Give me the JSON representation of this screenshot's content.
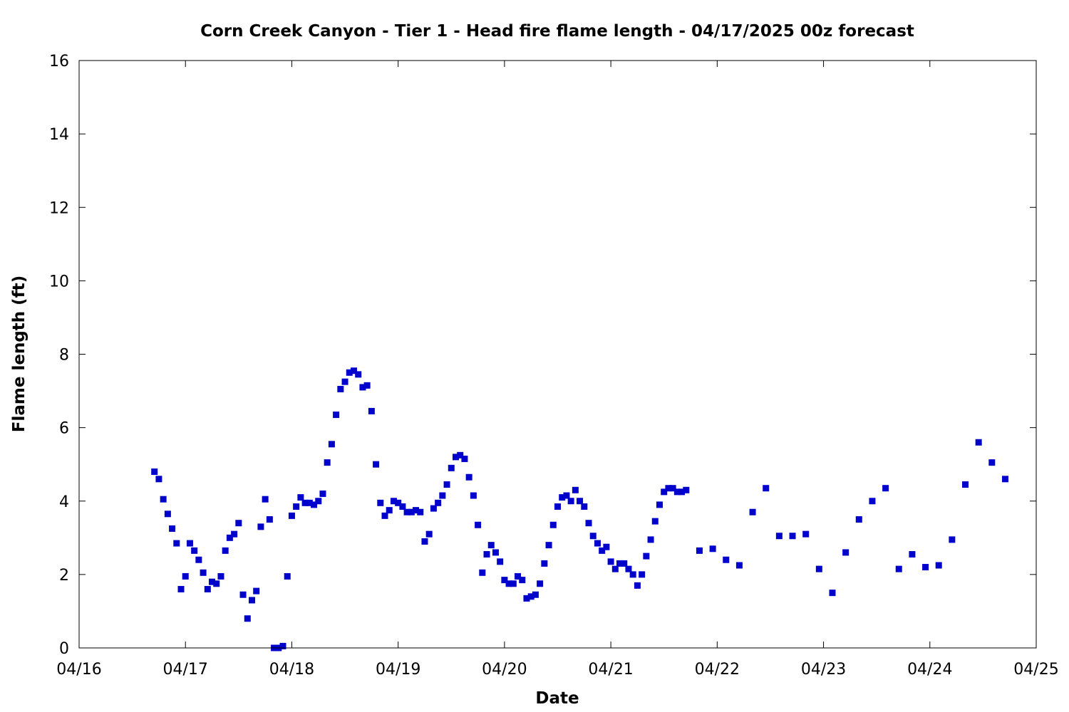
{
  "chart_data": {
    "type": "scatter",
    "title": "Corn Creek Canyon - Tier 1 - Head fire flame length - 04/17/2025 00z forecast",
    "xlabel": "Date",
    "ylabel": "Flame length (ft)",
    "xlim": [
      "2025-04-16T00:00",
      "2025-04-25T00:00"
    ],
    "ylim": [
      0,
      16
    ],
    "x_ticks": [
      "04/16",
      "04/17",
      "04/18",
      "04/19",
      "04/20",
      "04/21",
      "04/22",
      "04/23",
      "04/24",
      "04/25"
    ],
    "y_ticks": [
      "0",
      "2",
      "4",
      "6",
      "8",
      "10",
      "12",
      "14",
      "16"
    ],
    "grid": false,
    "marker": "square",
    "marker_color": "#0000cc",
    "series": [
      {
        "x": [
          "2025-04-16T17:00",
          "2025-04-16T18:00",
          "2025-04-16T19:00",
          "2025-04-16T20:00",
          "2025-04-16T21:00",
          "2025-04-16T22:00",
          "2025-04-16T23:00",
          "2025-04-17T00:00",
          "2025-04-17T01:00",
          "2025-04-17T02:00",
          "2025-04-17T03:00",
          "2025-04-17T04:00",
          "2025-04-17T05:00",
          "2025-04-17T06:00",
          "2025-04-17T07:00",
          "2025-04-17T08:00",
          "2025-04-17T09:00",
          "2025-04-17T10:00",
          "2025-04-17T11:00",
          "2025-04-17T12:00",
          "2025-04-17T13:00",
          "2025-04-17T14:00",
          "2025-04-17T15:00",
          "2025-04-17T16:00",
          "2025-04-17T17:00",
          "2025-04-17T18:00",
          "2025-04-17T19:00",
          "2025-04-17T20:00",
          "2025-04-17T21:00",
          "2025-04-17T22:00",
          "2025-04-17T23:00",
          "2025-04-18T00:00",
          "2025-04-18T01:00",
          "2025-04-18T02:00",
          "2025-04-18T03:00",
          "2025-04-18T04:00",
          "2025-04-18T05:00",
          "2025-04-18T06:00",
          "2025-04-18T07:00",
          "2025-04-18T08:00",
          "2025-04-18T09:00",
          "2025-04-18T10:00",
          "2025-04-18T11:00",
          "2025-04-18T12:00",
          "2025-04-18T13:00",
          "2025-04-18T14:00",
          "2025-04-18T15:00",
          "2025-04-18T16:00",
          "2025-04-18T17:00",
          "2025-04-18T18:00",
          "2025-04-18T19:00",
          "2025-04-18T20:00",
          "2025-04-18T21:00",
          "2025-04-18T22:00",
          "2025-04-18T23:00",
          "2025-04-19T00:00",
          "2025-04-19T01:00",
          "2025-04-19T02:00",
          "2025-04-19T03:00",
          "2025-04-19T04:00",
          "2025-04-19T05:00",
          "2025-04-19T06:00",
          "2025-04-19T07:00",
          "2025-04-19T08:00",
          "2025-04-19T09:00",
          "2025-04-19T10:00",
          "2025-04-19T11:00",
          "2025-04-19T12:00",
          "2025-04-19T13:00",
          "2025-04-19T14:00",
          "2025-04-19T15:00",
          "2025-04-19T16:00",
          "2025-04-19T17:00",
          "2025-04-19T18:00",
          "2025-04-19T19:00",
          "2025-04-19T20:00",
          "2025-04-19T21:00",
          "2025-04-19T22:00",
          "2025-04-19T23:00",
          "2025-04-20T00:00",
          "2025-04-20T01:00",
          "2025-04-20T02:00",
          "2025-04-20T03:00",
          "2025-04-20T04:00",
          "2025-04-20T05:00",
          "2025-04-20T06:00",
          "2025-04-20T07:00",
          "2025-04-20T08:00",
          "2025-04-20T09:00",
          "2025-04-20T10:00",
          "2025-04-20T11:00",
          "2025-04-20T12:00",
          "2025-04-20T13:00",
          "2025-04-20T14:00",
          "2025-04-20T15:00",
          "2025-04-20T16:00",
          "2025-04-20T17:00",
          "2025-04-20T18:00",
          "2025-04-20T19:00",
          "2025-04-20T20:00",
          "2025-04-20T21:00",
          "2025-04-20T22:00",
          "2025-04-20T23:00",
          "2025-04-21T00:00",
          "2025-04-21T01:00",
          "2025-04-21T02:00",
          "2025-04-21T03:00",
          "2025-04-21T04:00",
          "2025-04-21T05:00",
          "2025-04-21T06:00",
          "2025-04-21T07:00",
          "2025-04-21T08:00",
          "2025-04-21T09:00",
          "2025-04-21T10:00",
          "2025-04-21T11:00",
          "2025-04-21T12:00",
          "2025-04-21T13:00",
          "2025-04-21T14:00",
          "2025-04-21T15:00",
          "2025-04-21T16:00",
          "2025-04-21T17:00",
          "2025-04-21T20:00",
          "2025-04-21T23:00",
          "2025-04-22T02:00",
          "2025-04-22T05:00",
          "2025-04-22T08:00",
          "2025-04-22T11:00",
          "2025-04-22T14:00",
          "2025-04-22T17:00",
          "2025-04-22T20:00",
          "2025-04-22T23:00",
          "2025-04-23T02:00",
          "2025-04-23T05:00",
          "2025-04-23T08:00",
          "2025-04-23T11:00",
          "2025-04-23T14:00",
          "2025-04-23T17:00",
          "2025-04-23T20:00",
          "2025-04-23T23:00",
          "2025-04-24T02:00",
          "2025-04-24T05:00",
          "2025-04-24T08:00",
          "2025-04-24T11:00",
          "2025-04-24T14:00",
          "2025-04-24T17:00"
        ],
        "y": [
          4.8,
          4.6,
          4.05,
          3.65,
          3.25,
          2.85,
          1.6,
          1.95,
          2.85,
          2.65,
          2.4,
          2.05,
          1.6,
          1.8,
          1.75,
          1.95,
          2.65,
          3.0,
          3.1,
          3.4,
          1.45,
          0.8,
          1.3,
          1.55,
          3.3,
          4.05,
          3.5,
          0.0,
          0.0,
          0.05,
          1.95,
          3.6,
          3.85,
          4.1,
          3.95,
          3.95,
          3.9,
          4.0,
          4.2,
          5.05,
          5.55,
          6.35,
          7.05,
          7.25,
          7.5,
          7.55,
          7.45,
          7.1,
          7.15,
          6.45,
          5.0,
          3.95,
          3.6,
          3.75,
          4.0,
          3.95,
          3.85,
          3.7,
          3.7,
          3.75,
          3.7,
          2.9,
          3.1,
          3.8,
          3.95,
          4.15,
          4.45,
          4.9,
          5.2,
          5.25,
          5.15,
          4.65,
          4.15,
          3.35,
          2.05,
          2.55,
          2.8,
          2.6,
          2.35,
          1.85,
          1.75,
          1.75,
          1.95,
          1.85,
          1.35,
          1.4,
          1.45,
          1.75,
          2.3,
          2.8,
          3.35,
          3.85,
          4.1,
          4.15,
          4.0,
          4.3,
          4.0,
          3.85,
          3.4,
          3.05,
          2.85,
          2.65,
          2.75,
          2.35,
          2.15,
          2.3,
          2.3,
          2.15,
          2.0,
          1.7,
          2.0,
          2.5,
          2.95,
          3.45,
          3.9,
          4.25,
          4.35,
          4.35,
          4.25,
          4.25,
          4.3,
          2.65,
          2.7,
          2.4,
          2.25,
          3.7,
          4.35,
          3.05,
          3.05,
          3.1,
          2.15,
          1.5,
          2.6,
          3.5,
          4.0,
          4.35,
          2.15,
          2.55,
          2.2,
          2.25,
          2.95,
          4.45,
          5.6,
          5.05,
          4.6
        ]
      }
    ]
  }
}
